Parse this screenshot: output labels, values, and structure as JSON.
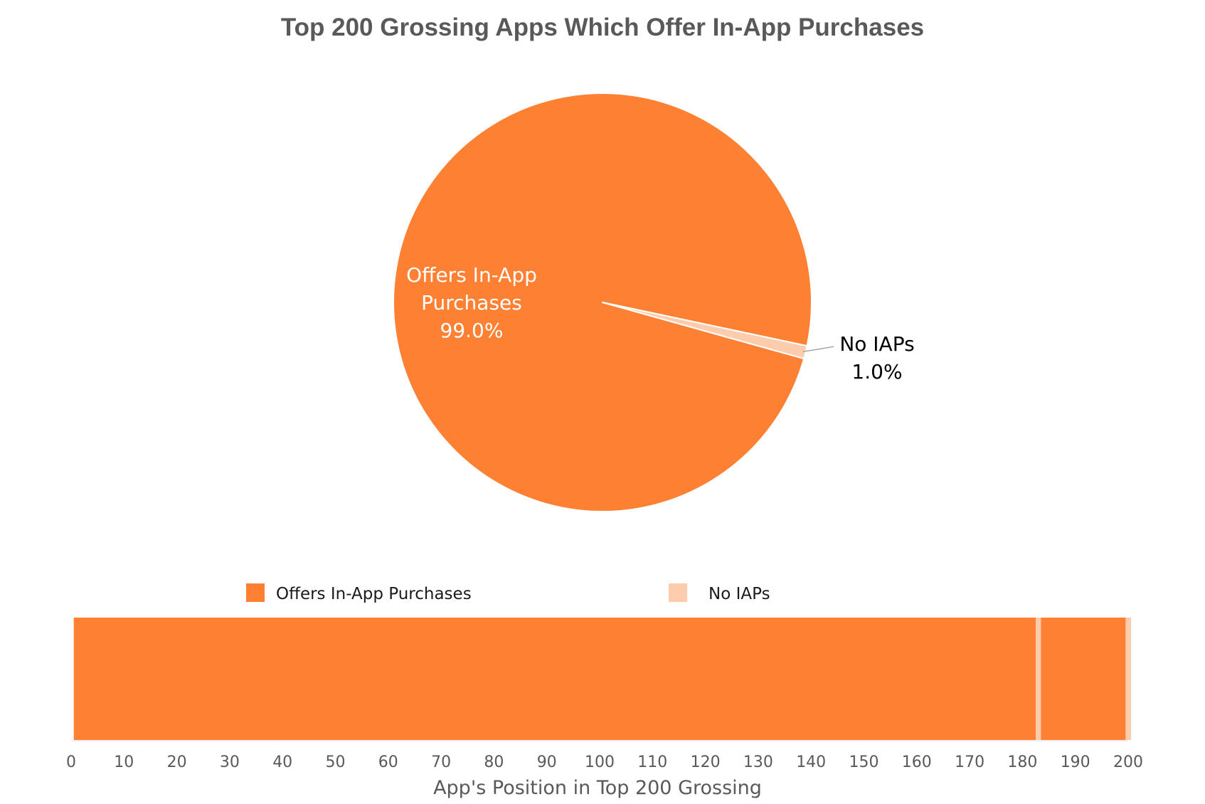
{
  "chart_data": [
    {
      "type": "pie",
      "title": "Top 200 Grossing Apps Which Offer In-App Purchases",
      "slices": [
        {
          "label": "Offers In-App Purchases",
          "value": 99.0,
          "display": "99.0%",
          "color": "#FD8033"
        },
        {
          "label": "No IAPs",
          "value": 1.0,
          "display": "1.0%",
          "color": "#FDCCAD"
        }
      ]
    },
    {
      "type": "bar",
      "orientation": "horizontal-stacked-strip",
      "legend": [
        {
          "label": "Offers In-App Purchases",
          "color": "#FD8033"
        },
        {
          "label": "No IAPs",
          "color": "#FDCCAD"
        }
      ],
      "legend_position": "top",
      "xlabel": "App's Position in Top 200 Grossing",
      "xlim": [
        0,
        200
      ],
      "xticks": [
        0,
        10,
        20,
        30,
        40,
        50,
        60,
        70,
        80,
        90,
        100,
        110,
        120,
        130,
        140,
        150,
        160,
        170,
        180,
        190,
        200
      ],
      "no_iap_positions": [
        183,
        200
      ]
    }
  ]
}
